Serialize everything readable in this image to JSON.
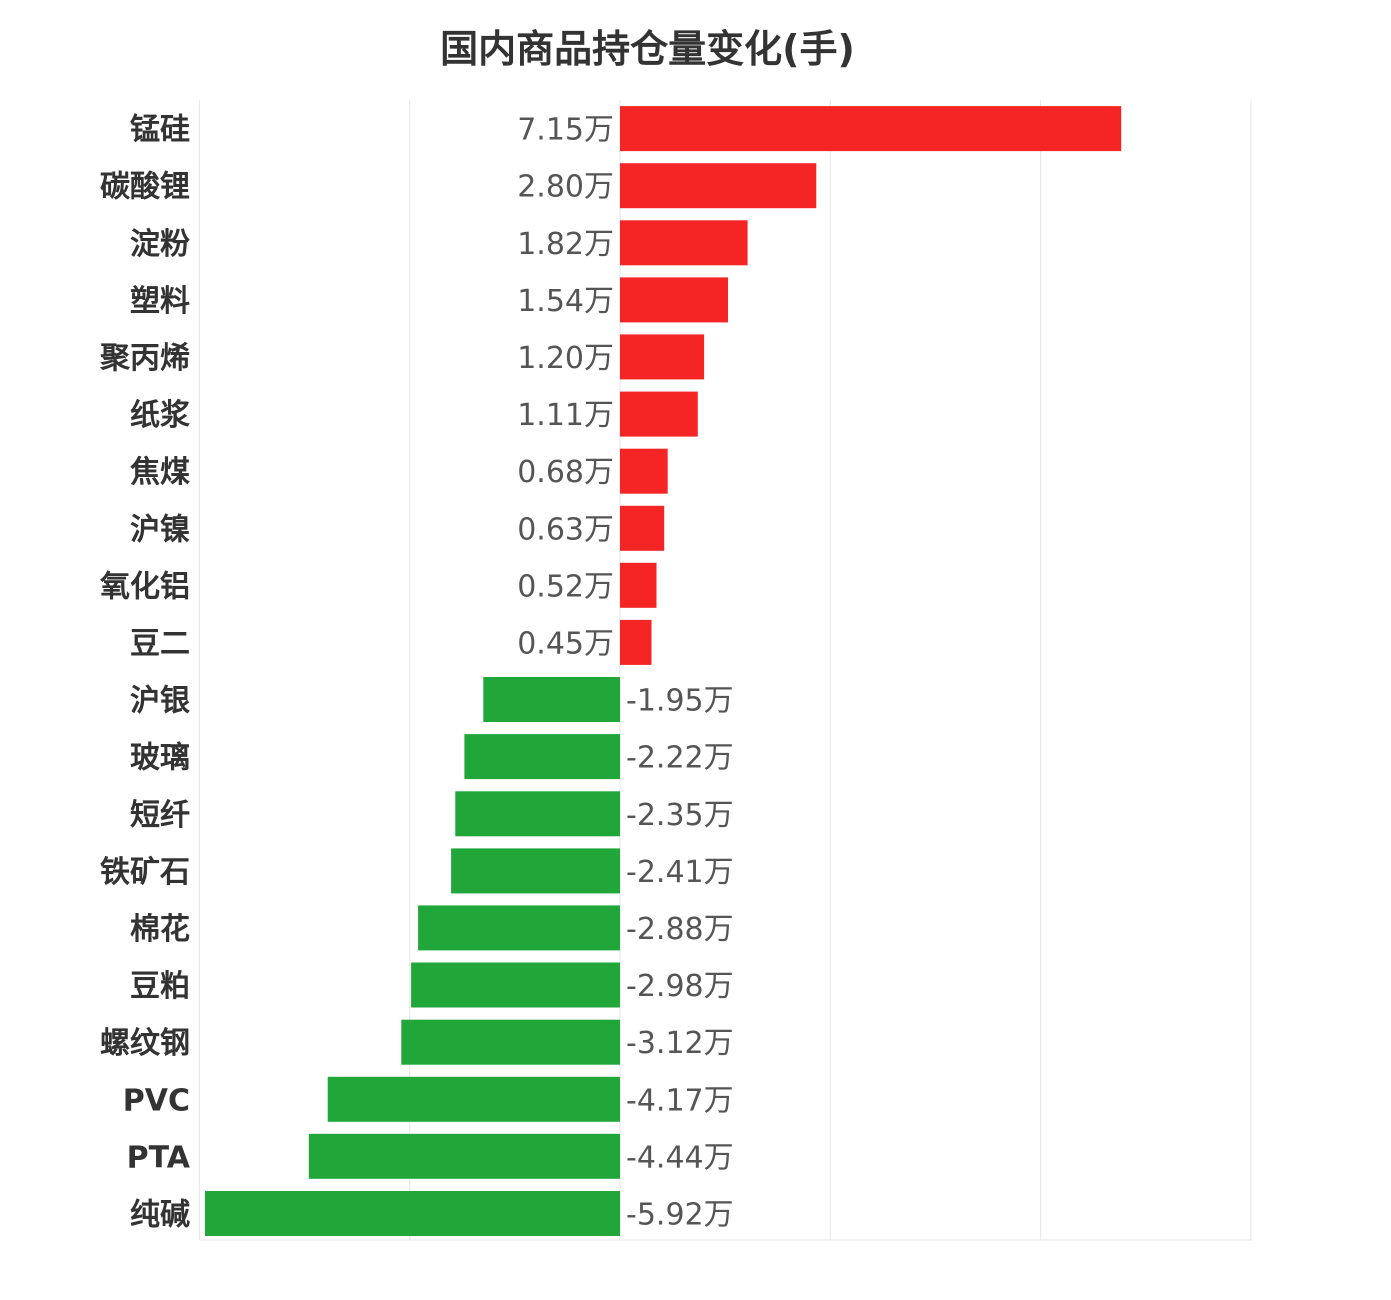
{
  "chart_data": {
    "type": "bar",
    "orientation": "horizontal",
    "title": "国内商品持仓量变化(手)",
    "xlabel": "",
    "ylabel": "",
    "unit": "万",
    "xlim": [
      -6.0,
      15.0
    ],
    "grid": true,
    "legend": "none",
    "categories": [
      "锰硅",
      "碳酸锂",
      "淀粉",
      "塑料",
      "聚丙烯",
      "纸浆",
      "焦煤",
      "沪镍",
      "氧化铝",
      "豆二",
      "沪银",
      "玻璃",
      "短纤",
      "铁矿石",
      "棉花",
      "豆粕",
      "螺纹钢",
      "PVC",
      "PTA",
      "纯碱"
    ],
    "values": [
      7.15,
      2.8,
      1.82,
      1.54,
      1.2,
      1.11,
      0.68,
      0.63,
      0.52,
      0.45,
      -1.95,
      -2.22,
      -2.35,
      -2.41,
      -2.88,
      -2.98,
      -3.12,
      -4.17,
      -4.44,
      -5.92
    ],
    "labels": [
      "7.15万",
      "2.80万",
      "1.82万",
      "1.54万",
      "1.20万",
      "1.11万",
      "0.68万",
      "0.63万",
      "0.52万",
      "0.45万",
      "-1.95万",
      "-2.22万",
      "-2.35万",
      "-2.41万",
      "-2.88万",
      "-2.98万",
      "-3.12万",
      "-4.17万",
      "-4.44万",
      "-5.92万"
    ],
    "colors": {
      "positive": "#f52525",
      "negative": "#21a63a",
      "grid": "#e6e6e6"
    }
  }
}
